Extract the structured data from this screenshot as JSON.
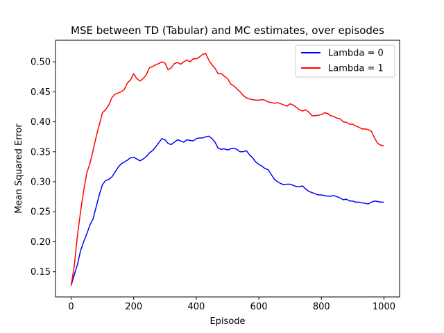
{
  "chart_data": {
    "type": "line",
    "title": "MSE between TD (Tabular) and MC estimates, over episodes",
    "xlabel": "Episode",
    "ylabel": "Mean Squared Error",
    "xlim": [
      -50,
      1050
    ],
    "ylim": [
      0.108,
      0.536
    ],
    "xticks": [
      0,
      200,
      400,
      600,
      800,
      1000
    ],
    "xtick_labels": [
      "0",
      "200",
      "400",
      "600",
      "800",
      "1000"
    ],
    "yticks": [
      0.15,
      0.2,
      0.25,
      0.3,
      0.35,
      0.4,
      0.45,
      0.5
    ],
    "ytick_labels": [
      "0.15",
      "0.20",
      "0.25",
      "0.30",
      "0.35",
      "0.40",
      "0.45",
      "0.50"
    ],
    "grid": false,
    "legend": {
      "placement": "top-right"
    },
    "series": [
      {
        "name": "Lambda = 0",
        "color": "#0000ff",
        "x": [
          0,
          10,
          20,
          30,
          40,
          50,
          60,
          70,
          80,
          90,
          100,
          110,
          120,
          130,
          140,
          150,
          160,
          170,
          180,
          190,
          200,
          210,
          220,
          230,
          240,
          250,
          260,
          270,
          280,
          290,
          300,
          310,
          320,
          330,
          340,
          350,
          360,
          370,
          380,
          390,
          400,
          410,
          420,
          430,
          440,
          450,
          460,
          470,
          480,
          490,
          500,
          510,
          520,
          530,
          540,
          550,
          560,
          570,
          580,
          590,
          600,
          610,
          620,
          630,
          640,
          650,
          660,
          670,
          680,
          690,
          700,
          710,
          720,
          730,
          740,
          750,
          760,
          770,
          780,
          790,
          800,
          810,
          820,
          830,
          840,
          850,
          860,
          870,
          880,
          890,
          900,
          910,
          920,
          930,
          940,
          950,
          960,
          970,
          980,
          990,
          1000
        ],
        "values": [
          0.127,
          0.145,
          0.162,
          0.185,
          0.2,
          0.213,
          0.228,
          0.238,
          0.258,
          0.278,
          0.295,
          0.302,
          0.304,
          0.308,
          0.316,
          0.324,
          0.33,
          0.333,
          0.336,
          0.34,
          0.341,
          0.338,
          0.335,
          0.338,
          0.342,
          0.348,
          0.352,
          0.358,
          0.365,
          0.372,
          0.37,
          0.364,
          0.362,
          0.366,
          0.37,
          0.368,
          0.366,
          0.37,
          0.369,
          0.368,
          0.372,
          0.373,
          0.373,
          0.375,
          0.376,
          0.372,
          0.366,
          0.356,
          0.354,
          0.355,
          0.353,
          0.355,
          0.356,
          0.354,
          0.35,
          0.35,
          0.352,
          0.345,
          0.34,
          0.333,
          0.329,
          0.326,
          0.322,
          0.32,
          0.312,
          0.304,
          0.3,
          0.297,
          0.295,
          0.296,
          0.296,
          0.294,
          0.292,
          0.292,
          0.293,
          0.288,
          0.284,
          0.282,
          0.28,
          0.278,
          0.278,
          0.277,
          0.276,
          0.276,
          0.277,
          0.275,
          0.273,
          0.27,
          0.271,
          0.268,
          0.268,
          0.266,
          0.266,
          0.265,
          0.264,
          0.263,
          0.266,
          0.268,
          0.267,
          0.266,
          0.266
        ]
      },
      {
        "name": "Lambda = 1",
        "color": "#ff0000",
        "x": [
          0,
          10,
          20,
          30,
          40,
          50,
          60,
          70,
          80,
          90,
          100,
          110,
          120,
          130,
          140,
          150,
          160,
          170,
          180,
          190,
          200,
          210,
          220,
          230,
          240,
          250,
          260,
          270,
          280,
          290,
          300,
          310,
          320,
          330,
          340,
          350,
          360,
          370,
          380,
          390,
          400,
          410,
          420,
          430,
          440,
          450,
          460,
          470,
          480,
          490,
          500,
          510,
          520,
          530,
          540,
          550,
          560,
          570,
          580,
          590,
          600,
          610,
          620,
          630,
          640,
          650,
          660,
          670,
          680,
          690,
          700,
          710,
          720,
          730,
          740,
          750,
          760,
          770,
          780,
          790,
          800,
          810,
          820,
          830,
          840,
          850,
          860,
          870,
          880,
          890,
          900,
          910,
          920,
          930,
          940,
          950,
          960,
          970,
          980,
          990,
          1000
        ],
        "values": [
          0.127,
          0.16,
          0.21,
          0.25,
          0.285,
          0.315,
          0.33,
          0.352,
          0.375,
          0.395,
          0.415,
          0.42,
          0.428,
          0.44,
          0.446,
          0.448,
          0.45,
          0.454,
          0.465,
          0.47,
          0.48,
          0.472,
          0.468,
          0.472,
          0.478,
          0.49,
          0.492,
          0.495,
          0.497,
          0.5,
          0.498,
          0.487,
          0.49,
          0.497,
          0.499,
          0.496,
          0.5,
          0.503,
          0.5,
          0.505,
          0.505,
          0.508,
          0.512,
          0.514,
          0.503,
          0.495,
          0.489,
          0.48,
          0.48,
          0.476,
          0.472,
          0.463,
          0.46,
          0.455,
          0.45,
          0.444,
          0.44,
          0.438,
          0.437,
          0.436,
          0.436,
          0.437,
          0.436,
          0.433,
          0.432,
          0.431,
          0.432,
          0.43,
          0.428,
          0.426,
          0.43,
          0.428,
          0.424,
          0.42,
          0.418,
          0.42,
          0.416,
          0.41,
          0.41,
          0.411,
          0.412,
          0.415,
          0.414,
          0.41,
          0.409,
          0.406,
          0.405,
          0.4,
          0.399,
          0.396,
          0.396,
          0.393,
          0.391,
          0.388,
          0.388,
          0.387,
          0.384,
          0.373,
          0.364,
          0.361,
          0.36
        ]
      }
    ]
  }
}
